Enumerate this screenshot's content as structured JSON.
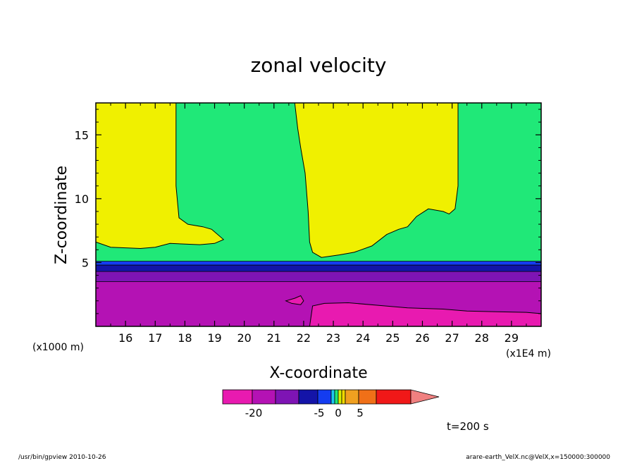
{
  "chart_data": {
    "type": "heatmap",
    "title": "zonal velocity",
    "xlabel": "X-coordinate",
    "ylabel": "Z-coordinate",
    "x_unit": "(x1E4 m)",
    "y_unit": "(x1000 m)",
    "xlim": [
      15.0,
      30.0
    ],
    "ylim": [
      0.0,
      17.5
    ],
    "x_ticks": [
      "16",
      "17",
      "18",
      "19",
      "20",
      "21",
      "22",
      "23",
      "24",
      "25",
      "26",
      "27",
      "28",
      "29"
    ],
    "y_ticks": [
      "5",
      "10",
      "15"
    ],
    "time_label": "t=200 s",
    "colorbar": {
      "colors": [
        "#e81ab0",
        "#b412b4",
        "#7e14b4",
        "#1414a8",
        "#143cf0",
        "#1cc8f0",
        "#20e878",
        "#d8f000",
        "#f0d800",
        "#f0a020",
        "#f07018",
        "#f01818",
        "#f08080"
      ],
      "tick_labels": [
        "-20",
        "-5",
        "0",
        "5"
      ]
    },
    "regions": [
      {
        "color": "#b412b4",
        "label": "lower layer"
      },
      {
        "color": "#e81ab0",
        "label": "strong negative"
      },
      {
        "color": "#7e14b4",
        "label": "band"
      },
      {
        "color": "#1414a8",
        "label": "band"
      },
      {
        "color": "#143cf0",
        "label": "band"
      },
      {
        "color": "#20e878",
        "label": "upper green"
      },
      {
        "color": "#f0f000",
        "label": "upper yellow"
      }
    ],
    "boundaries": {
      "yellow_left": [
        [
          15.0,
          6.6
        ],
        [
          15.5,
          6.2
        ],
        [
          16.5,
          6.1
        ],
        [
          17.0,
          6.2
        ],
        [
          17.5,
          6.5
        ],
        [
          18.5,
          6.4
        ],
        [
          19.0,
          6.5
        ],
        [
          19.3,
          6.8
        ],
        [
          18.9,
          7.6
        ],
        [
          18.6,
          7.8
        ],
        [
          18.1,
          8.0
        ],
        [
          17.8,
          8.5
        ],
        [
          17.7,
          11.0
        ],
        [
          17.7,
          17.5
        ]
      ],
      "yellow_mid": [
        [
          21.7,
          17.5
        ],
        [
          21.8,
          15.5
        ],
        [
          21.9,
          14.0
        ],
        [
          22.05,
          12.0
        ],
        [
          22.15,
          9.0
        ],
        [
          22.2,
          6.6
        ],
        [
          22.3,
          5.8
        ],
        [
          22.6,
          5.4
        ],
        [
          23.2,
          5.6
        ],
        [
          23.7,
          5.8
        ],
        [
          24.3,
          6.3
        ],
        [
          24.8,
          7.2
        ],
        [
          25.2,
          7.6
        ],
        [
          25.5,
          7.8
        ],
        [
          25.8,
          8.6
        ],
        [
          26.2,
          9.2
        ],
        [
          26.7,
          9.0
        ],
        [
          26.9,
          8.8
        ],
        [
          27.1,
          9.2
        ],
        [
          27.2,
          11.0
        ],
        [
          27.2,
          17.5
        ]
      ],
      "magenta": [
        [
          22.2,
          0.0
        ],
        [
          22.3,
          1.6
        ],
        [
          22.7,
          1.8
        ],
        [
          23.5,
          1.85
        ],
        [
          24.5,
          1.65
        ],
        [
          25.5,
          1.45
        ],
        [
          26.7,
          1.35
        ],
        [
          27.5,
          1.2
        ],
        [
          28.5,
          1.15
        ],
        [
          29.5,
          1.1
        ],
        [
          30.0,
          1.0
        ],
        [
          30.0,
          0.0
        ]
      ],
      "small_blob": [
        [
          21.6,
          1.8
        ],
        [
          21.9,
          1.7
        ],
        [
          22.0,
          2.0
        ],
        [
          21.9,
          2.4
        ],
        [
          21.7,
          2.2
        ],
        [
          21.4,
          2.0
        ]
      ],
      "bands_z": [
        5.1,
        4.8,
        4.3,
        3.5
      ]
    }
  },
  "footer": {
    "left": "/usr/bin/gpview   2010-10-26",
    "right": "arare-earth_VelX.nc@VelX,x=150000:300000"
  }
}
